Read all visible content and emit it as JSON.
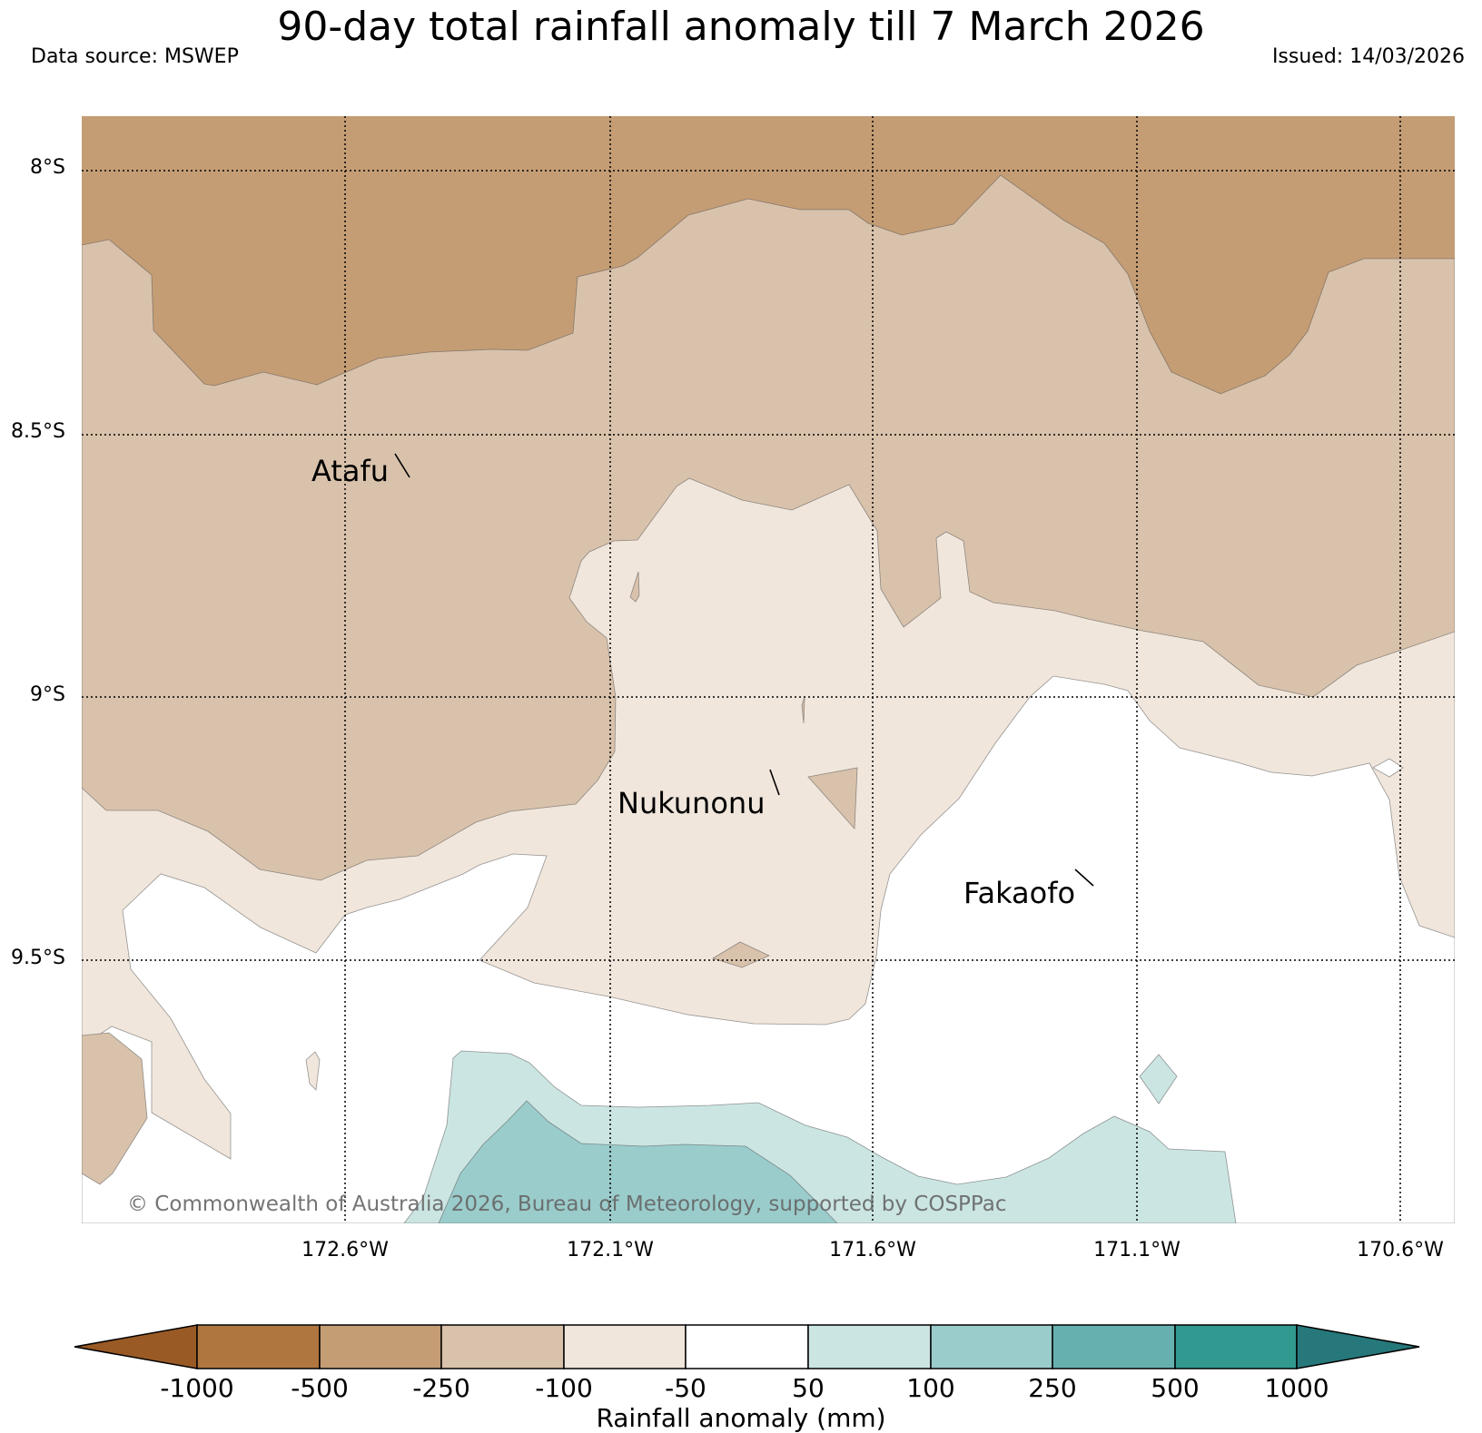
{
  "header": {
    "title": "90-day total rainfall anomaly till 7 March 2026",
    "data_source": "Data source: MSWEP",
    "issued": "Issued: 14/03/2026"
  },
  "map": {
    "latitude_labels": [
      "8°S",
      "8.5°S",
      "9°S",
      "9.5°S"
    ],
    "longitude_labels": [
      "172.6°W",
      "172.1°W",
      "171.6°W",
      "171.1°W",
      "170.6°W"
    ],
    "places": {
      "atafu": "Atafu",
      "nukunonu": "Nukunonu",
      "fakaofo": "Fakaofo"
    },
    "copyright": "© Commonwealth of Australia 2026, Bureau of Meteorology, supported by COSPPac"
  },
  "colorbar": {
    "title": "Rainfall anomaly (mm)",
    "ticks": [
      "-1000",
      "-500",
      "-250",
      "-100",
      "-50",
      "50",
      "100",
      "250",
      "500",
      "1000"
    ],
    "colors": {
      "lt_-1000": "#9a5a25",
      "n1000_n500": "#b07640",
      "n500_n250": "#c49d75",
      "n250_n100": "#d9c2ab",
      "n100_n50": "#f0e6dc",
      "n50_50": "#ffffff",
      "p50_p100": "#cbe5e3",
      "p100_p250": "#9acccb",
      "p250_p500": "#66b1b0",
      "p500_p1000": "#31998f",
      "gt_1000": "#26787a"
    }
  }
}
